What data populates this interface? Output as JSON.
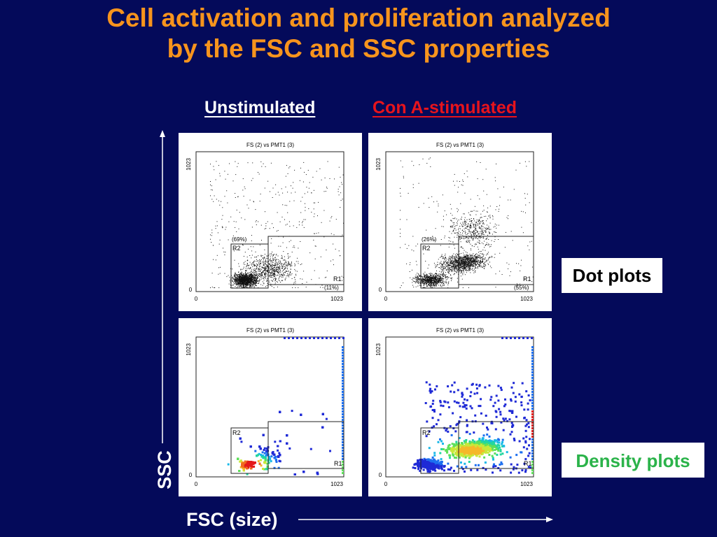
{
  "title_line1": "Cell activation and proliferation analyzed",
  "title_line2": "by the FSC and SSC properties",
  "columns": {
    "unstimulated": "Unstimulated",
    "stimulated": "Con A-stimulated"
  },
  "plot": {
    "header": "FS (2) vs PMT1 (3)",
    "y_max": "1023",
    "x_max": "1023",
    "zero": "0",
    "gate_r1": "R1",
    "gate_r2": "R2"
  },
  "dot_plots": {
    "unstimulated": {
      "r2_pct": "(69%)",
      "r1_pct": "(11%)"
    },
    "stimulated": {
      "r2_pct": "(26%)",
      "r1_pct": "(55%)"
    }
  },
  "labels": {
    "dot_plots": "Dot plots",
    "density_plots": "Density plots",
    "y_axis": "SSC",
    "x_axis": "FSC (size)"
  },
  "colors": {
    "background": "#040a5a",
    "title": "#f7941d",
    "stimulated_label": "#e8141c",
    "density_label": "#2bb34a"
  }
}
